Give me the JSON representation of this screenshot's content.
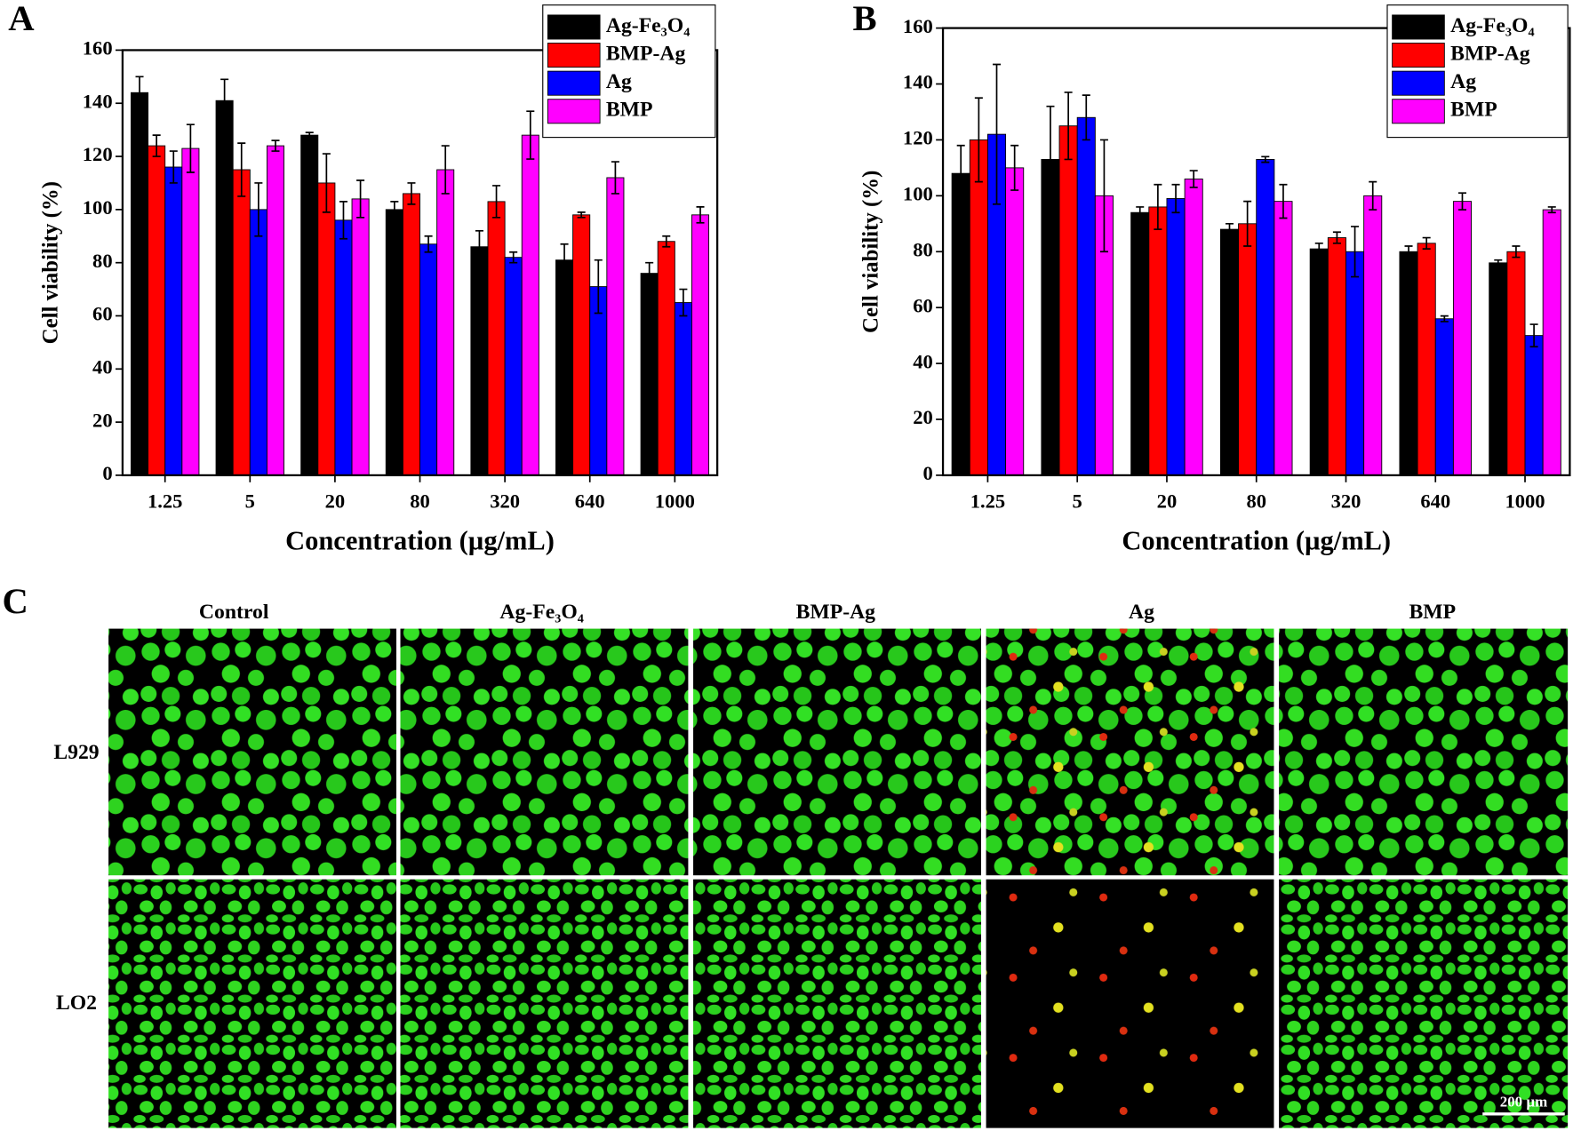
{
  "chart_data": [
    {
      "type": "bar",
      "panel": "A",
      "ylabel": "Cell viability (%)",
      "xlabel": "Concentration (µg/mL)",
      "categories": [
        "1.25",
        "5",
        "20",
        "80",
        "320",
        "640",
        "1000"
      ],
      "ylim": [
        0,
        160
      ],
      "yticks": [
        0,
        20,
        40,
        60,
        80,
        100,
        120,
        140,
        160
      ],
      "legend": "upper right",
      "series": [
        {
          "name": "Ag-Fe₃O₄",
          "color": "#000000",
          "values": [
            144,
            141,
            128,
            100,
            86,
            81,
            76
          ],
          "errors": [
            6,
            8,
            1,
            3,
            6,
            6,
            4
          ]
        },
        {
          "name": "BMP-Ag",
          "color": "#ff0000",
          "values": [
            124,
            115,
            110,
            106,
            103,
            98,
            88
          ],
          "errors": [
            4,
            10,
            11,
            4,
            6,
            1,
            2
          ]
        },
        {
          "name": "Ag",
          "color": "#0000ff",
          "values": [
            116,
            100,
            96,
            87,
            82,
            71,
            65
          ],
          "errors": [
            6,
            10,
            7,
            3,
            2,
            10,
            5
          ]
        },
        {
          "name": "BMP",
          "color": "#ff00ff",
          "values": [
            123,
            124,
            104,
            115,
            128,
            112,
            98
          ],
          "errors": [
            9,
            2,
            7,
            9,
            9,
            6,
            3
          ]
        }
      ]
    },
    {
      "type": "bar",
      "panel": "B",
      "ylabel": "Cell viability (%)",
      "xlabel": "Concentration (µg/mL)",
      "categories": [
        "1.25",
        "5",
        "20",
        "80",
        "320",
        "640",
        "1000"
      ],
      "ylim": [
        0,
        160
      ],
      "yticks": [
        0,
        20,
        40,
        60,
        80,
        100,
        120,
        140,
        160
      ],
      "legend": "upper right",
      "series": [
        {
          "name": "Ag-Fe₃O₄",
          "color": "#000000",
          "values": [
            108,
            113,
            94,
            88,
            81,
            80,
            76
          ],
          "errors": [
            10,
            19,
            2,
            2,
            2,
            2,
            1
          ]
        },
        {
          "name": "BMP-Ag",
          "color": "#ff0000",
          "values": [
            120,
            125,
            96,
            90,
            85,
            83,
            80
          ],
          "errors": [
            15,
            12,
            8,
            8,
            2,
            2,
            2
          ]
        },
        {
          "name": "Ag",
          "color": "#0000ff",
          "values": [
            122,
            128,
            99,
            113,
            80,
            56,
            50
          ],
          "errors": [
            25,
            8,
            5,
            1,
            9,
            1,
            4
          ]
        },
        {
          "name": "BMP",
          "color": "#ff00ff",
          "values": [
            110,
            100,
            106,
            98,
            100,
            98,
            95
          ],
          "errors": [
            8,
            20,
            3,
            6,
            5,
            3,
            1
          ]
        }
      ]
    }
  ],
  "micrographs": {
    "panel": "C",
    "columns": [
      "Control",
      "Ag-Fe₃O₄",
      "BMP-Ag",
      "Ag",
      "BMP"
    ],
    "rows": [
      "L929",
      "LO2"
    ],
    "scale_bar": "200 µm"
  }
}
